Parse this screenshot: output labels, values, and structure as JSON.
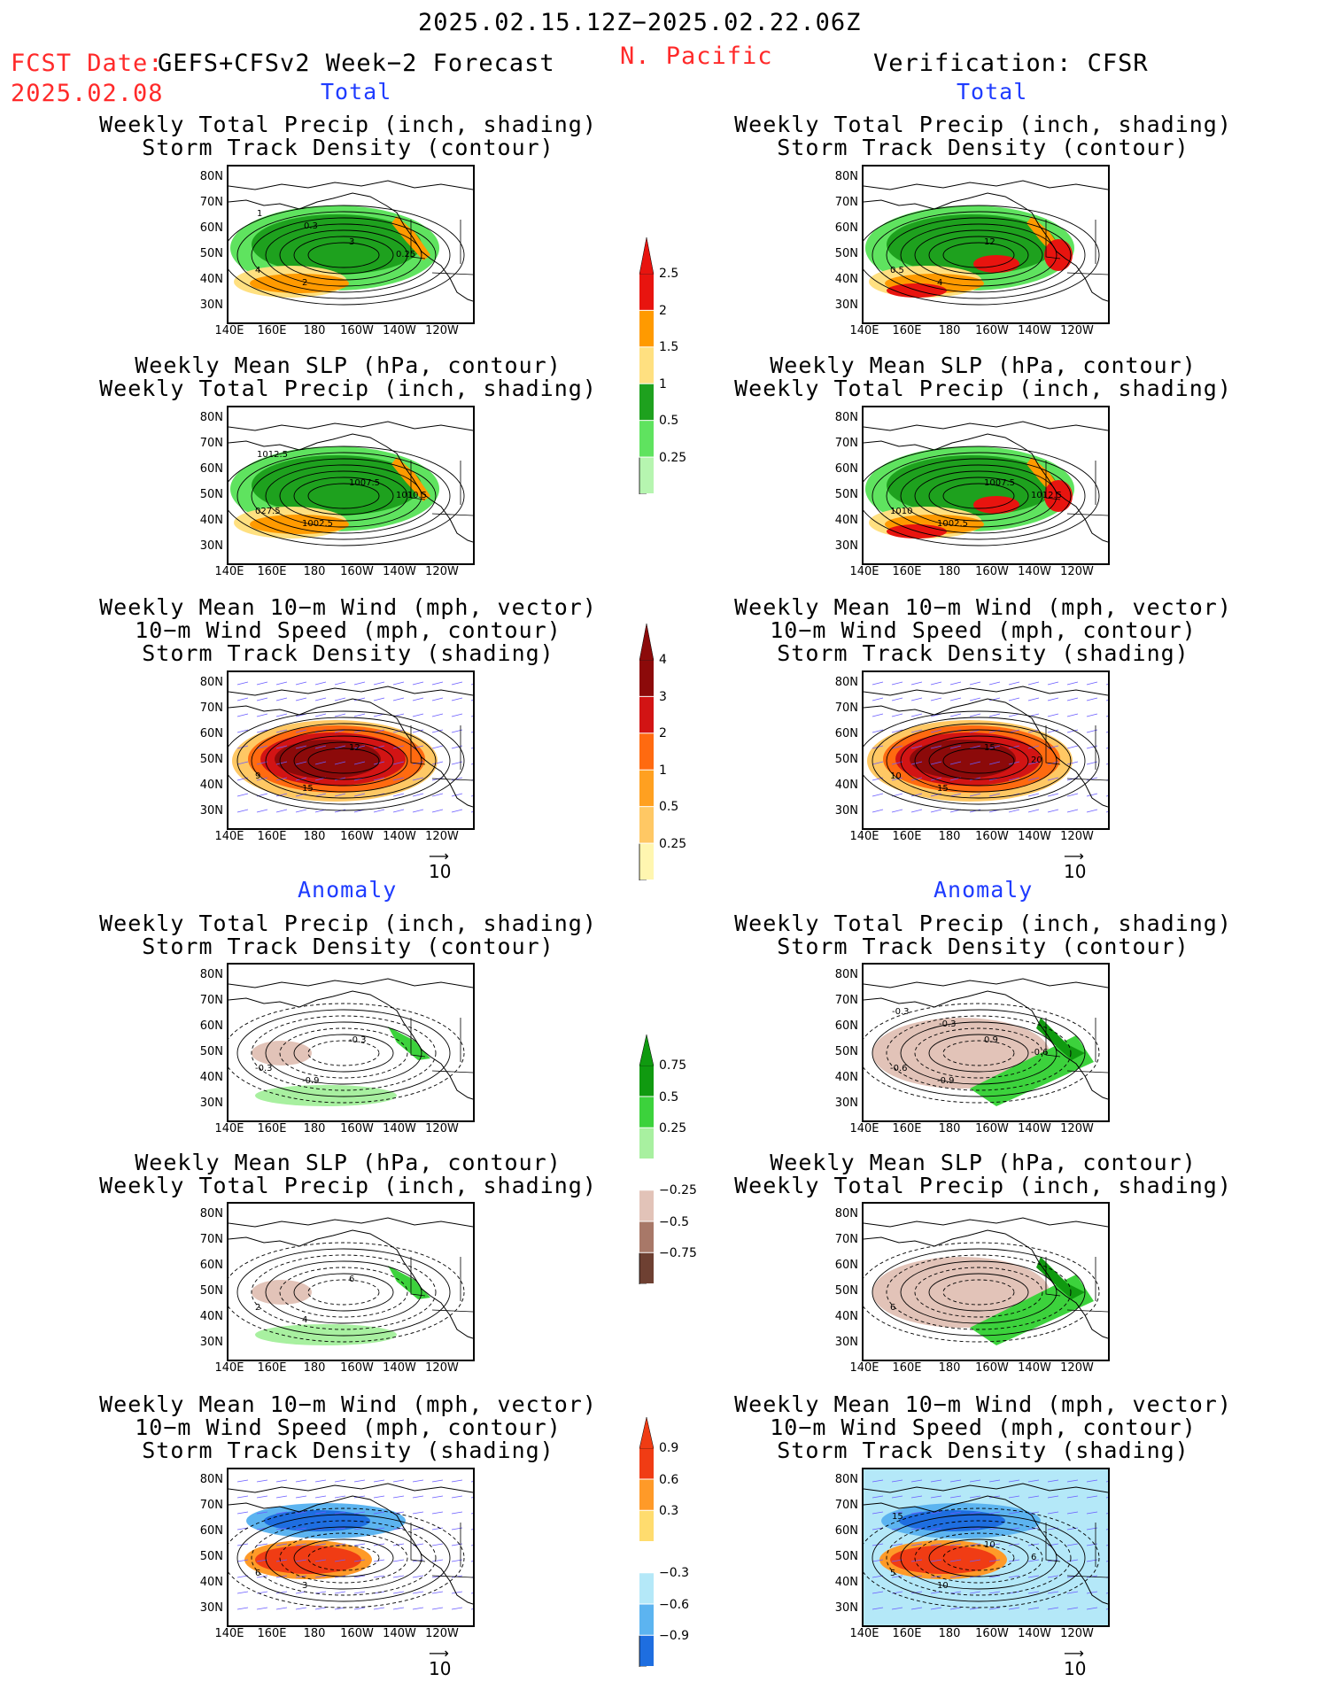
{
  "header": {
    "date_range": "2025.02.15.12Z−2025.02.22.06Z",
    "fcst_date_label": "FCST Date:",
    "forecast_name": "GEFS+CFSv2 Week−2 Forecast",
    "fcst_date": "2025.02.08",
    "region": "N. Pacific",
    "verification": "Verification: CFSR"
  },
  "sections": {
    "total": "Total",
    "anomaly": "Anomaly"
  },
  "panel_titles": {
    "precip_track": [
      "Weekly Total Precip (inch, shading)",
      "Storm Track Density (contour)"
    ],
    "slp_precip": [
      "Weekly Mean SLP (hPa, contour)",
      "Weekly Total Precip (inch, shading)"
    ],
    "wind_track": [
      "Weekly Mean 10−m Wind (mph, vector)",
      "10−m Wind Speed (mph, contour)",
      "Storm Track Density (shading)"
    ]
  },
  "axes": {
    "lat_labels": [
      "80N",
      "70N",
      "60N",
      "50N",
      "40N",
      "30N"
    ],
    "lon_labels": [
      "140E",
      "160E",
      "180",
      "160W",
      "140W",
      "120W"
    ]
  },
  "vector_ref": "10",
  "colorbars": {
    "precip_total": {
      "labels": [
        "2.5",
        "2",
        "1.5",
        "1",
        "0.5",
        "0.25"
      ],
      "colors": [
        "#e8140f",
        "#ff9a00",
        "#ffe080",
        "#1ea11e",
        "#5fe35f",
        "#b6f5b0"
      ]
    },
    "track_total": {
      "labels": [
        "4",
        "3",
        "2",
        "1",
        "0.5",
        "0.25"
      ],
      "colors": [
        "#8c0a0a",
        "#d21414",
        "#ff6a10",
        "#ffa020",
        "#ffc864",
        "#fff6b0"
      ]
    },
    "precip_anom": {
      "labels": [
        "0.75",
        "0.5",
        "0.25",
        "−0.25",
        "−0.5",
        "−0.75"
      ],
      "colors": [
        "#109a10",
        "#3cd23c",
        "#a8f0a0",
        "#ffffff",
        "#e2c3b8",
        "#a87868",
        "#6e4032"
      ]
    },
    "track_anom": {
      "labels": [
        "0.9",
        "0.6",
        "0.3",
        "−0.3",
        "−0.6",
        "−0.9"
      ],
      "colors": [
        "#f03c14",
        "#ff9a28",
        "#ffdc6e",
        "#ffffff",
        "#b4e8f8",
        "#5cb4f0",
        "#1e6ee0"
      ]
    }
  },
  "map_annotations": {
    "f_pt": [
      "4",
      "2",
      "3",
      "0.25",
      "1",
      "0.3"
    ],
    "v_pt": [
      "0.5",
      "4",
      "12"
    ],
    "f_sp": [
      "027.5",
      "1002.5",
      "1007.5",
      "1010.5",
      "1012.5"
    ],
    "v_sp": [
      "1010",
      "1002.5",
      "1007.5",
      "1012.5"
    ],
    "f_wt": [
      "9",
      "15",
      "12"
    ],
    "v_wt": [
      "10",
      "15",
      "15",
      "20"
    ],
    "f_pa": [
      "-0.3",
      "-0.9",
      "-0.3"
    ],
    "v_pa": [
      "-0.6",
      "-0.9",
      "0.9",
      "-0.6",
      "-0.3",
      "-0.3"
    ],
    "f_sa": [
      "2",
      "4",
      "6"
    ],
    "v_sa": [
      "6"
    ],
    "f_wa": [
      "6",
      "3"
    ],
    "v_wa": [
      "5",
      "10",
      "10",
      "6",
      "15"
    ]
  }
}
